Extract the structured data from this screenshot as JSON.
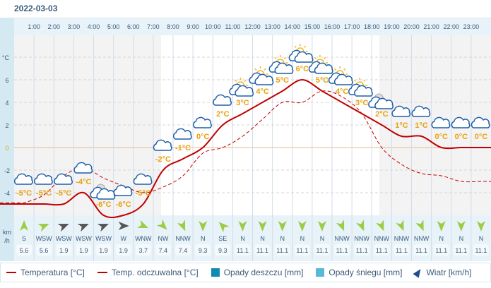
{
  "date": "2022-03-03",
  "legend": {
    "temp": "Temperatura [°C]",
    "feels": "Temp. odczuwalna [°C]",
    "rain": "Opady deszczu [mm]",
    "snow": "Opady śniegu [mm]",
    "wind": "Wiatr [km/h]"
  },
  "colors": {
    "temp": "#c00000",
    "rain": "#0e8bb5",
    "snow": "#56b9d6",
    "label": "#e8a20c",
    "icon": "#1f5fa8"
  },
  "chart_data": {
    "type": "line",
    "y_unit": "°C",
    "wind_unit": "km\n/h",
    "ylim": [
      -7,
      9
    ],
    "yticks": [
      6,
      4,
      2,
      0,
      -2,
      -4
    ],
    "hour_labels": [
      "1:00",
      "2:00",
      "3:00",
      "4:00",
      "5:00",
      "6:00",
      "7:00",
      "8:00",
      "9:00",
      "10:00",
      "11:00",
      "12:00",
      "13:00",
      "14:00",
      "15:00",
      "16:00",
      "17:00",
      "18:00",
      "19:00",
      "20:00",
      "21:00",
      "22:00",
      "23:00"
    ],
    "temperature": [
      -5,
      -5,
      -5,
      -4,
      -6,
      -6,
      -5,
      -2,
      -1,
      0,
      2,
      3,
      4,
      5,
      6,
      5,
      4,
      3,
      2,
      1,
      1,
      0,
      0,
      0
    ],
    "temperature_labels": [
      "-5°C",
      "-5°C",
      "-5°C",
      "-4°C",
      "-6°C",
      "-6°C",
      "-5°C",
      "-2°C",
      "-1°C",
      "0°C",
      "2°C",
      "3°C",
      "4°C",
      "5°C",
      "6°C",
      "5°C",
      "4°C",
      "3°C",
      "2°C",
      "1°C",
      "1°C",
      "0°C",
      "0°C",
      "0°C"
    ],
    "feels_like": [
      -4.9,
      -4.2,
      -2.5,
      -1.8,
      -2.7,
      -3.4,
      -4,
      -3.5,
      -2.5,
      -0.5,
      0,
      1,
      2.5,
      4,
      4,
      5,
      4.5,
      3,
      0,
      -1.5,
      -2.3,
      -2.5,
      -3,
      -3
    ],
    "weather": [
      "cloud",
      "cloud",
      "cloud",
      "cloud",
      "moon-cloud",
      "cloud",
      "cloud",
      "cloud",
      "cloud",
      "cloud",
      "cloud",
      "sun-cloud",
      "sun-cloud",
      "sun-cloud",
      "sun-cloud",
      "sun-cloud",
      "sun-cloud",
      "sun-cloud",
      "moon-cloud",
      "cloud",
      "cloud",
      "cloud",
      "cloud",
      "cloud"
    ],
    "wind_dir": [
      "S",
      "WSW",
      "WSW",
      "WSW",
      "WSW",
      "W",
      "WNW",
      "NW",
      "NNW",
      "N",
      "SE",
      "N",
      "N",
      "N",
      "N",
      "N",
      "NNW",
      "NNW",
      "NNW",
      "NNW",
      "NNW",
      "N",
      "N",
      "N"
    ],
    "wind_speed": [
      "5.6",
      "5.6",
      "1.9",
      "1.9",
      "1.9",
      "1.9",
      "3.7",
      "7.4",
      "7.4",
      "9.3",
      "9.3",
      "11.1",
      "11.1",
      "11.1",
      "11.1",
      "11.1",
      "11.1",
      "11.1",
      "11.1",
      "11.1",
      "11.1",
      "11.1",
      "11.1",
      "11.1"
    ]
  }
}
